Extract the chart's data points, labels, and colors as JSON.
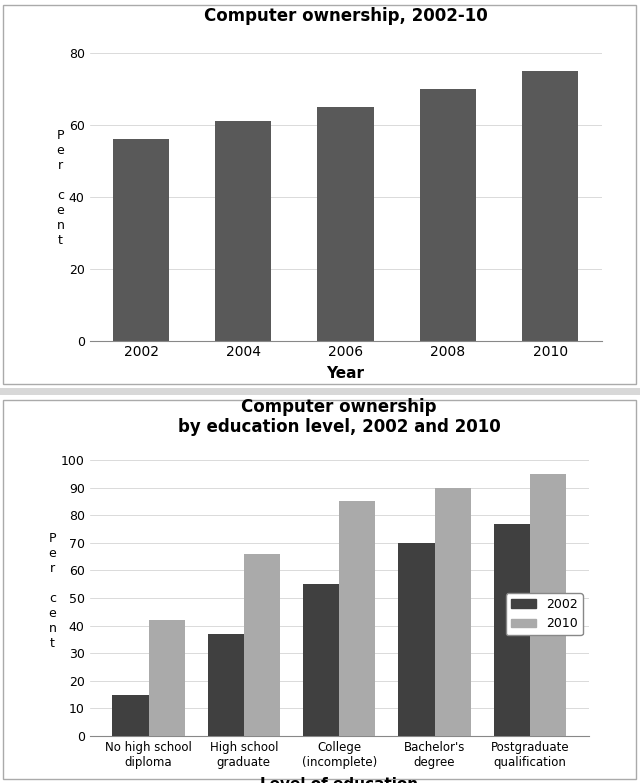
{
  "chart1": {
    "title": "Computer ownership, 2002-10",
    "years": [
      "2002",
      "2004",
      "2006",
      "2008",
      "2010"
    ],
    "values": [
      56,
      61,
      65,
      70,
      75
    ],
    "bar_color": "#595959",
    "ylabel": "P\ne\nr\n\nc\ne\nn\nt",
    "xlabel": "Year",
    "ylim": [
      0,
      85
    ],
    "yticks": [
      0,
      20,
      40,
      60,
      80
    ]
  },
  "chart2": {
    "title": "Computer ownership\nby education level, 2002 and 2010",
    "categories": [
      "No high school\ndiploma",
      "High school\ngraduate",
      "College\n(incomplete)",
      "Bachelor's\ndegree",
      "Postgraduate\nqualification"
    ],
    "values_2002": [
      15,
      37,
      55,
      70,
      77
    ],
    "values_2010": [
      42,
      66,
      85,
      90,
      95
    ],
    "bar_color_2002": "#404040",
    "bar_color_2010": "#aaaaaa",
    "ylabel": "P\ne\nr\n\nc\ne\nn\nt",
    "xlabel": "Level of education",
    "ylim": [
      0,
      105
    ],
    "yticks": [
      0,
      10,
      20,
      30,
      40,
      50,
      60,
      70,
      80,
      90,
      100
    ],
    "legend_2002": "2002",
    "legend_2010": "2010"
  },
  "fig_bg": "#d8d8d8",
  "panel_bg": "#ffffff"
}
